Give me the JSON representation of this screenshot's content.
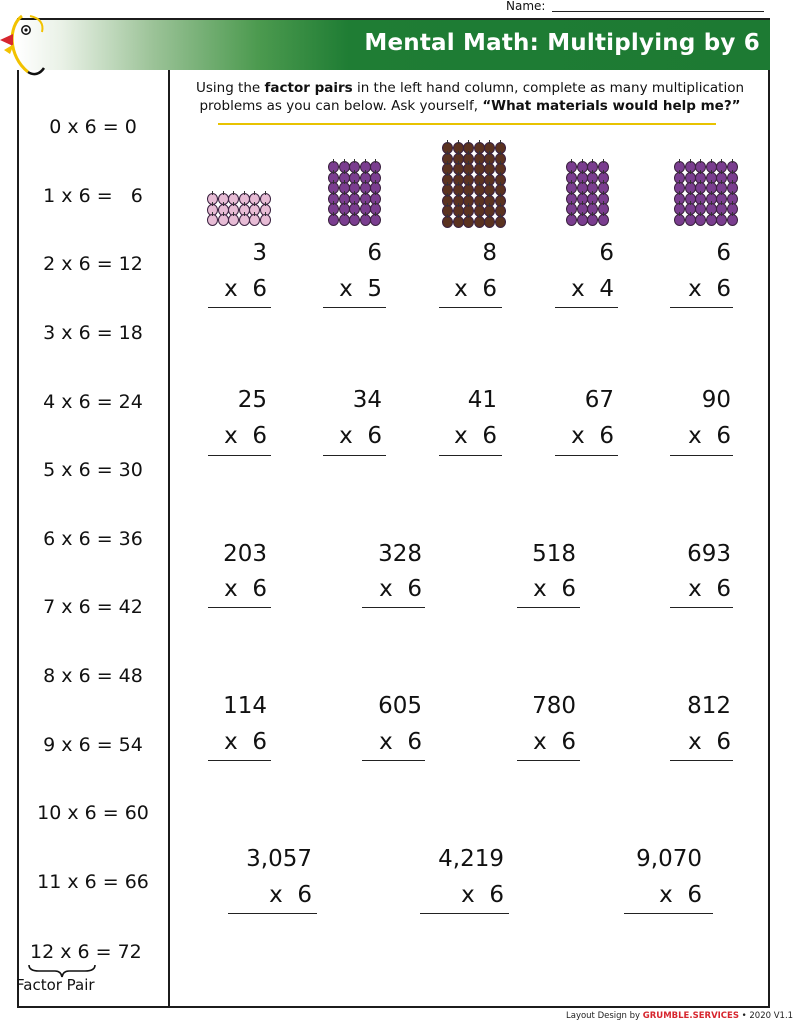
{
  "header": {
    "name_label": "Name:",
    "title": "Mental Math: Multiplying by 6"
  },
  "factor_pairs": [
    "0 x 6 = 0",
    "1 x 6 =   6",
    "2 x 6 = 12",
    "3 x 6 = 18",
    "4 x 6 = 24",
    "5 x 6 = 30",
    "6 x 6 = 36",
    "7 x 6 = 42",
    "8 x 6 = 48",
    "9 x 6 = 54",
    "10 x 6 = 60",
    "11 x 6 = 66",
    "12 x 6 = 72"
  ],
  "factor_pair_label": "Factor Pair",
  "instructions": {
    "part1": "Using the ",
    "bold1": "factor pairs",
    "part2": " in the left hand column, complete as many multiplication problems as you can below. Ask yourself, ",
    "bold2": "“What materials would help me?”"
  },
  "bead_colors": {
    "light": "#e7bcd5",
    "purple": "#7a3d8f",
    "brown": "#5a3220"
  },
  "problems": {
    "row1": [
      {
        "top": "3",
        "bottom": "x  6"
      },
      {
        "top": "6",
        "bottom": "x  5"
      },
      {
        "top": "8",
        "bottom": "x  6"
      },
      {
        "top": "6",
        "bottom": "x  4"
      },
      {
        "top": "6",
        "bottom": "x  6"
      }
    ],
    "row2": [
      {
        "top": "25",
        "bottom": "x  6"
      },
      {
        "top": "34",
        "bottom": "x  6"
      },
      {
        "top": "41",
        "bottom": "x  6"
      },
      {
        "top": "67",
        "bottom": "x  6"
      },
      {
        "top": "90",
        "bottom": "x  6"
      }
    ],
    "row3": [
      {
        "top": "203",
        "bottom": "x  6"
      },
      {
        "top": "328",
        "bottom": "x  6"
      },
      {
        "top": "518",
        "bottom": "x  6"
      },
      {
        "top": "693",
        "bottom": "x  6"
      }
    ],
    "row4": [
      {
        "top": "114",
        "bottom": "x  6"
      },
      {
        "top": "605",
        "bottom": "x  6"
      },
      {
        "top": "780",
        "bottom": "x  6"
      },
      {
        "top": "812",
        "bottom": "x  6"
      }
    ],
    "row5": [
      {
        "top": "3,057",
        "bottom": "x  6"
      },
      {
        "top": "4,219",
        "bottom": "x  6"
      },
      {
        "top": "9,070",
        "bottom": "x  6"
      }
    ]
  },
  "footer": {
    "prefix": "Layout Design by ",
    "brand": "GRUMBLE.SERVICES",
    "suffix": " • 2020 V1.1"
  }
}
